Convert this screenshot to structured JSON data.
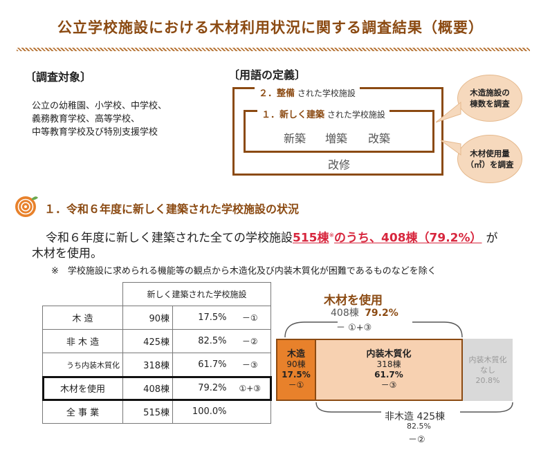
{
  "title": "公立学校施設における木材利用状況に関する調査結果（概要）",
  "target": {
    "heading": "〔調査対象〕",
    "lines": [
      "公立の幼稚園、小学校、中学校、",
      "義務教育学校、高等学校、",
      "中等教育学校及び特別支援学校"
    ]
  },
  "definitions": {
    "heading": "〔用語の定義〕",
    "outer_num": "２．",
    "outer_term": "整備",
    "outer_suffix": "された学校施設",
    "inner_num": "１．",
    "inner_term": "新しく建築",
    "inner_suffix": "された学校施設",
    "words": [
      "新築",
      "増築",
      "改築"
    ],
    "outer_word": "改修",
    "bubble_top": [
      "木造施設の",
      "棟数を調査"
    ],
    "bubble_bottom": [
      "木材使用量",
      "（㎥）を調査"
    ]
  },
  "section1": {
    "heading": "１．令和６年度に新しく建築された学校施設の状況",
    "lead_a": "令和６年度に新しく建築された全ての学校施設",
    "lead_red1": "515棟",
    "lead_mark": "※",
    "lead_red2": "のうち、408棟（79.2%）",
    "lead_b": "が",
    "lead_c": "木材を使用。",
    "note": "※　学校施設に求められる機能等の観点から木造化及び内装木質化が困難であるものなどを除く"
  },
  "table": {
    "header": "新しく建築された学校施設",
    "rows": [
      {
        "label": "木 造",
        "count": "90棟",
        "pct": "17.5%",
        "ref": "－①"
      },
      {
        "label": "非 木 造",
        "count": "425棟",
        "pct": "82.5%",
        "ref": "－②"
      },
      {
        "label": "うち内装木質化",
        "count": "318棟",
        "pct": "61.7%",
        "ref": "－③"
      },
      {
        "label": "木材を使用",
        "count": "408棟",
        "pct": "79.2%",
        "ref": "①+③"
      },
      {
        "label": "全 事 業",
        "count": "515棟",
        "pct": "100.0%",
        "ref": ""
      }
    ]
  },
  "bar": {
    "use_title": "木材を使用",
    "use_count": "408棟",
    "use_pct": "79.2%",
    "use_ref": "－ ①+③",
    "wood": {
      "label": "木造",
      "count": "90棟",
      "pct": "17.5%",
      "ref": "－①",
      "value": 17.5
    },
    "interior": {
      "label": "内装木質化",
      "count": "318棟",
      "pct": "61.7%",
      "ref": "－③",
      "value": 61.7
    },
    "none": {
      "label1": "内装木質化",
      "label2": "なし",
      "pct": "20.8%",
      "value": 20.8
    },
    "nonwood_title": "非木造 425棟",
    "nonwood_pct": "82.5%",
    "nonwood_ref": "－②",
    "colors": {
      "wood": "#e8812b",
      "interior": "#f7d1b1",
      "none": "#d9d9d9",
      "accent": "#8b4a12"
    }
  }
}
